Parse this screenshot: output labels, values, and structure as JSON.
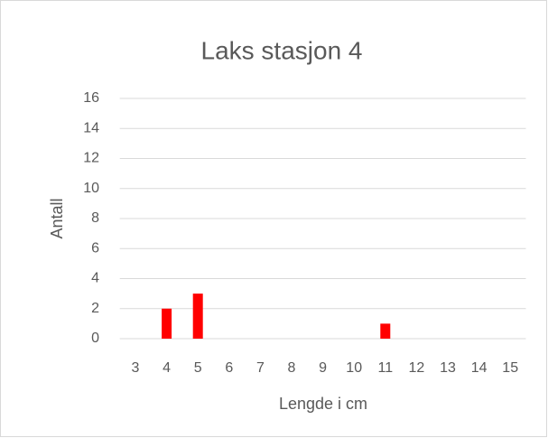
{
  "chart_data": {
    "type": "bar",
    "title": "Laks stasjon 4",
    "x_label": "Lengde i cm",
    "y_label": "Antall",
    "categories": [
      "3",
      "4",
      "5",
      "6",
      "7",
      "8",
      "9",
      "10",
      "11",
      "12",
      "13",
      "14",
      "15"
    ],
    "values": [
      0,
      2,
      3,
      0,
      0,
      0,
      0,
      0,
      1,
      0,
      0,
      0,
      0
    ],
    "color": "#ff0000",
    "ylim": [
      0,
      16
    ],
    "yticks": [
      0,
      2,
      4,
      6,
      8,
      10,
      12,
      14,
      16
    ],
    "grid": true
  }
}
